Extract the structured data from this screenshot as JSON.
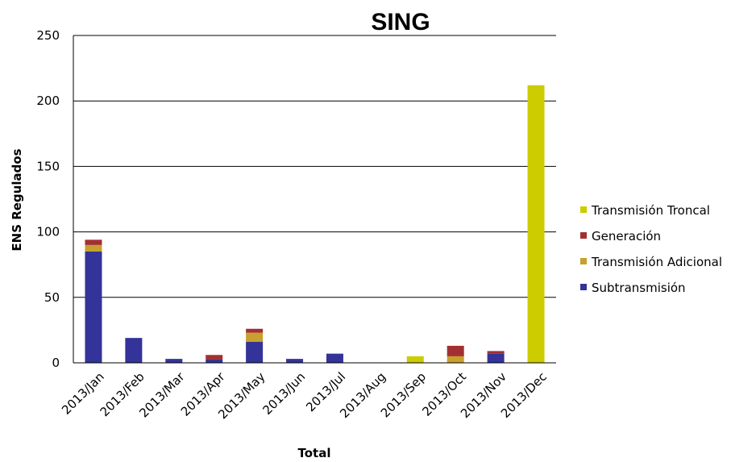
{
  "chart_data": {
    "type": "bar",
    "stacked": true,
    "title": "SING",
    "xlabel": "Total",
    "ylabel": "ENS Regulados",
    "ylim": [
      0,
      250
    ],
    "yticks": [
      "0",
      "50",
      "100",
      "150",
      "200",
      "250"
    ],
    "grid": true,
    "legend_position": "right",
    "categories": [
      "2013/Jan",
      "2013/Feb",
      "2013/Mar",
      "2013/Apr",
      "2013/May",
      "2013/Jun",
      "2013/Jul",
      "2013/Aug",
      "2013/Sep",
      "2013/Oct",
      "2013/Nov",
      "2013/Dec"
    ],
    "series": [
      {
        "name": "Subtransmisión",
        "color": "#333399",
        "values": [
          85,
          19,
          3,
          2.5,
          16,
          3,
          7,
          0,
          0,
          0,
          7,
          0
        ]
      },
      {
        "name": "Transmisión Adicional",
        "color": "#c8a02c",
        "values": [
          5,
          0,
          0,
          0,
          7,
          0,
          0,
          0,
          0,
          5,
          0,
          0
        ]
      },
      {
        "name": "Generación",
        "color": "#a33030",
        "values": [
          4,
          0,
          0,
          3.5,
          3,
          0,
          0,
          0,
          0,
          8,
          2,
          0
        ]
      },
      {
        "name": "Transmisión Troncal",
        "color": "#cccc00",
        "values": [
          0,
          0,
          0,
          0,
          0,
          0,
          0,
          0,
          5,
          0,
          0,
          212
        ]
      }
    ],
    "legend_order": [
      "Transmisión Troncal",
      "Generación",
      "Transmisión Adicional",
      "Subtransmisión"
    ]
  }
}
